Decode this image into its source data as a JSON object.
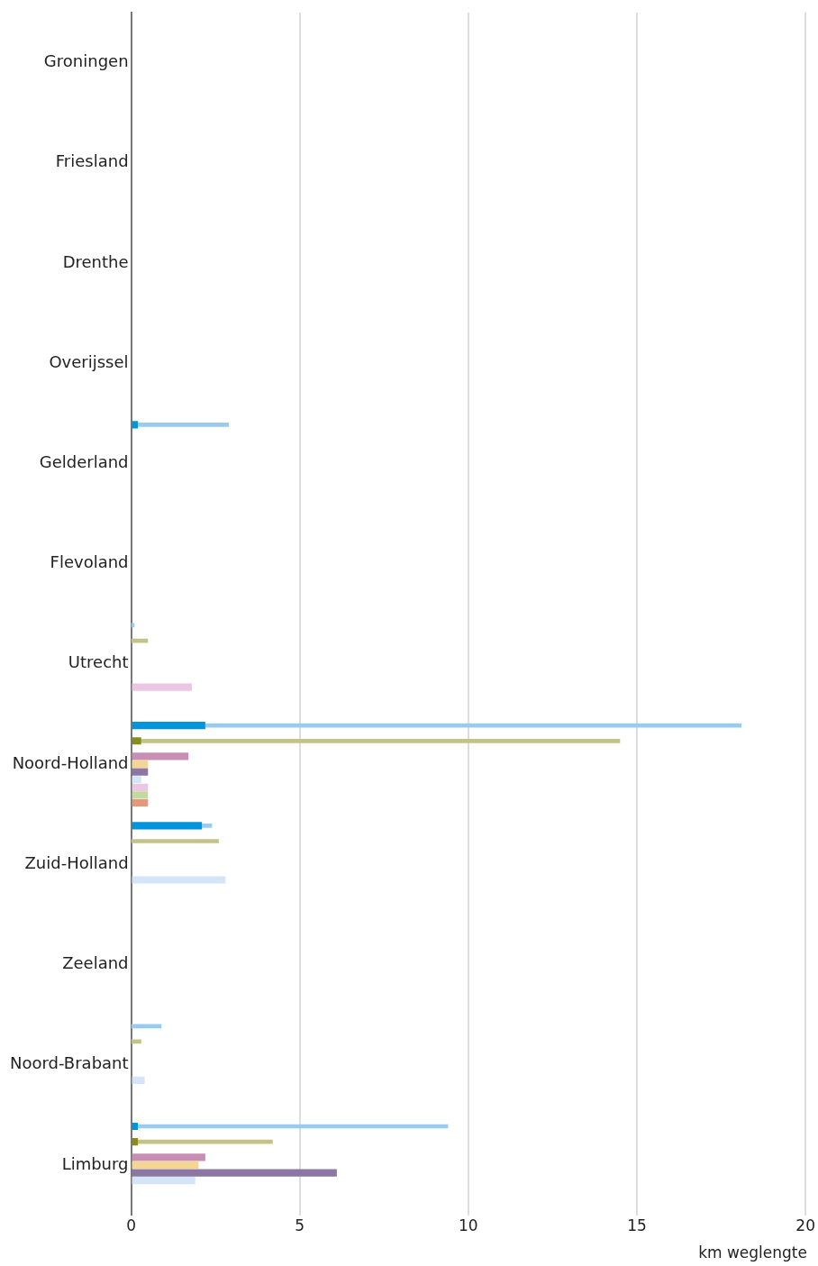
{
  "chart_data": {
    "type": "bar",
    "orientation": "horizontal",
    "xlabel": "km weglengte",
    "categories": [
      "Groningen",
      "Friesland",
      "Drenthe",
      "Overijssel",
      "Gelderland",
      "Flevoland",
      "Utrecht",
      "Noord-Holland",
      "Zuid-Holland",
      "Zeeland",
      "Noord-Brabant",
      "Limburg"
    ],
    "xlim": [
      0,
      20
    ],
    "xticks": [
      0,
      5,
      10,
      15,
      20
    ],
    "grid": "x",
    "legend": false,
    "series": [
      {
        "color": "#0095db",
        "values": [
          0,
          0,
          0,
          0,
          0.2,
          0,
          0,
          2.2,
          2.1,
          0,
          0,
          0.2
        ]
      },
      {
        "color": "#99cbf0",
        "values": [
          null,
          null,
          null,
          null,
          2.7,
          null,
          0.1,
          15.9,
          0.3,
          null,
          0.9,
          9.2
        ],
        "base": [
          null,
          null,
          null,
          null,
          0.2,
          null,
          0,
          2.2,
          2.1,
          null,
          0,
          0.2
        ]
      },
      {
        "color": "#8a8b1f",
        "values": [
          0,
          0,
          0,
          0,
          0,
          0,
          0,
          0.3,
          0,
          0,
          0,
          0.2
        ]
      },
      {
        "color": "#c3c389",
        "values": [
          null,
          null,
          null,
          null,
          null,
          null,
          0.5,
          14.2,
          2.6,
          null,
          0.3,
          4.0
        ],
        "base": [
          null,
          null,
          null,
          null,
          null,
          null,
          0,
          0.3,
          0,
          null,
          0,
          0.2
        ]
      },
      {
        "color": "#c98fb2",
        "values": [
          0,
          0,
          0,
          0,
          0,
          0,
          0,
          1.7,
          0,
          0,
          0,
          2.2
        ]
      },
      {
        "color": "#f5d592",
        "values": [
          0,
          0,
          0,
          0,
          0,
          0,
          0,
          0.5,
          0,
          0,
          0,
          2.0
        ]
      },
      {
        "color": "#8c76a3",
        "values": [
          0,
          0,
          0,
          0,
          0,
          0,
          0,
          0.5,
          0,
          0,
          0,
          6.1
        ]
      },
      {
        "color": "#d3e5f7",
        "values": [
          0,
          0,
          0,
          0,
          0,
          0,
          0,
          0.3,
          2.8,
          0,
          0.4,
          1.9
        ]
      },
      {
        "color": "#ecc6e3",
        "values": [
          0,
          0,
          0,
          0,
          0,
          0,
          1.8,
          0.5,
          0,
          0,
          0,
          0
        ]
      },
      {
        "color": "#c2d9a0",
        "values": [
          0,
          0,
          0,
          0,
          0,
          0,
          0,
          0.5,
          0,
          0,
          0,
          0
        ]
      },
      {
        "color": "#e5987a",
        "values": [
          0,
          0,
          0,
          0,
          0,
          0,
          0,
          0.5,
          0,
          0,
          0,
          0
        ]
      }
    ]
  }
}
